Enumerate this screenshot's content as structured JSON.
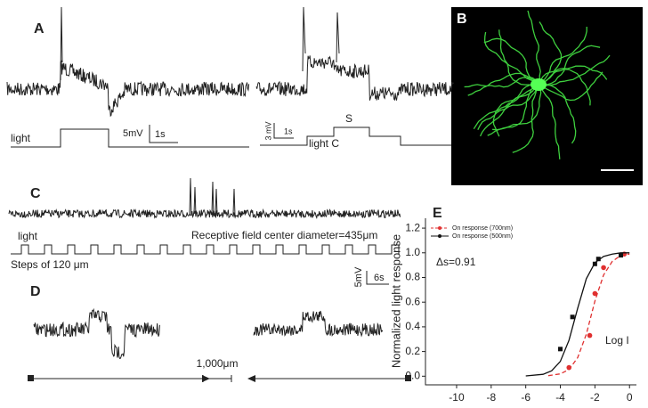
{
  "panels": {
    "a": {
      "label": "A",
      "light": "light",
      "scale_mv": "5mV",
      "scale_s": "1s",
      "scale_mv_2": "3 mV",
      "scale_s_2": "1s",
      "surround": "S",
      "center": "light C"
    },
    "b": {
      "label": "B"
    },
    "c": {
      "label": "C",
      "light": "light",
      "diameter": "Receptive field center diameter=435μm",
      "steps": "Steps of 120 μm",
      "scale_mv": "5mV",
      "scale_s": "6s"
    },
    "d": {
      "label": "D",
      "scale": "1,000μm"
    },
    "e": {
      "label": "E"
    }
  },
  "chart_data": {
    "type": "line",
    "ylabel": "Normalized light response",
    "annotation": "Δs=0.91",
    "xlabel": "Log I",
    "xlim": [
      -11.8,
      0.4
    ],
    "xticks": [
      -10,
      -8,
      -6,
      -4,
      -2,
      0
    ],
    "ylim": [
      -0.07,
      1.28
    ],
    "yticks": [
      {
        "value": 0,
        "label": "0.0"
      },
      0.2,
      0.4,
      0.6,
      0.8,
      {
        "value": 1,
        "label": "1.0"
      },
      1.2
    ],
    "series": [
      {
        "name": "On response (700nm)",
        "color": "#e03030",
        "dash": true,
        "x": [
          -3.5,
          -2.3,
          -2.0,
          -1.5,
          -0.3
        ],
        "values": [
          0.07,
          0.33,
          0.67,
          0.88,
          0.99
        ],
        "fit_x": [
          -4.7,
          -4,
          -3.5,
          -3,
          -2.5,
          -2,
          -1.5,
          -1,
          -0.5,
          0
        ],
        "fit_values": [
          0.004,
          0.019,
          0.054,
          0.15,
          0.34,
          0.61,
          0.82,
          0.93,
          0.98,
          0.99
        ]
      },
      {
        "name": "On response (500nm)",
        "color": "#111111",
        "dash": false,
        "x": [
          -4.0,
          -3.3,
          -2.0,
          -1.8,
          -0.5
        ],
        "values": [
          0.22,
          0.48,
          0.91,
          0.95,
          0.98
        ],
        "fit_x": [
          -6,
          -5,
          -4.5,
          -4,
          -3.5,
          -3,
          -2.5,
          -2,
          -1.5,
          -1,
          -0.5,
          0
        ],
        "fit_values": [
          0.002,
          0.015,
          0.044,
          0.12,
          0.29,
          0.55,
          0.79,
          0.92,
          0.97,
          0.99,
          1.0,
          1.0
        ]
      }
    ]
  }
}
